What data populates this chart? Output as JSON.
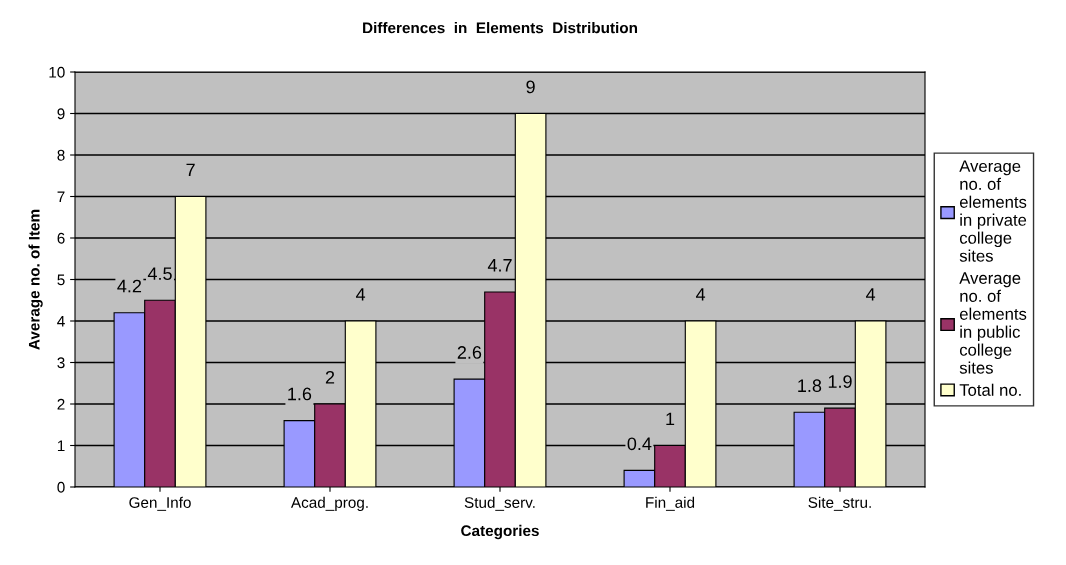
{
  "chart_data": {
    "type": "bar",
    "title": "Differences  in  Elements  Distribution",
    "xlabel": "Categories",
    "ylabel": "Average no. of Item",
    "categories": [
      "Gen_Info",
      "Acad_prog.",
      "Stud_serv.",
      "Fin_aid",
      "Site_stru."
    ],
    "series": [
      {
        "name": "Average no. of elements in private college sites",
        "color": "#9999ff",
        "values": [
          4.2,
          1.6,
          2.6,
          0.4,
          1.8
        ]
      },
      {
        "name": "Average no. of elements in public college sites",
        "color": "#993366",
        "values": [
          4.5,
          2,
          4.7,
          1,
          1.9
        ]
      },
      {
        "name": "Total no.",
        "color": "#ffffcc",
        "values": [
          7,
          4,
          9,
          4,
          4
        ]
      }
    ],
    "ylim": [
      0,
      10
    ],
    "yticks": [
      0,
      1,
      2,
      3,
      4,
      5,
      6,
      7,
      8,
      9,
      10
    ],
    "grid": "y",
    "legend": "right",
    "data_labels": true
  }
}
